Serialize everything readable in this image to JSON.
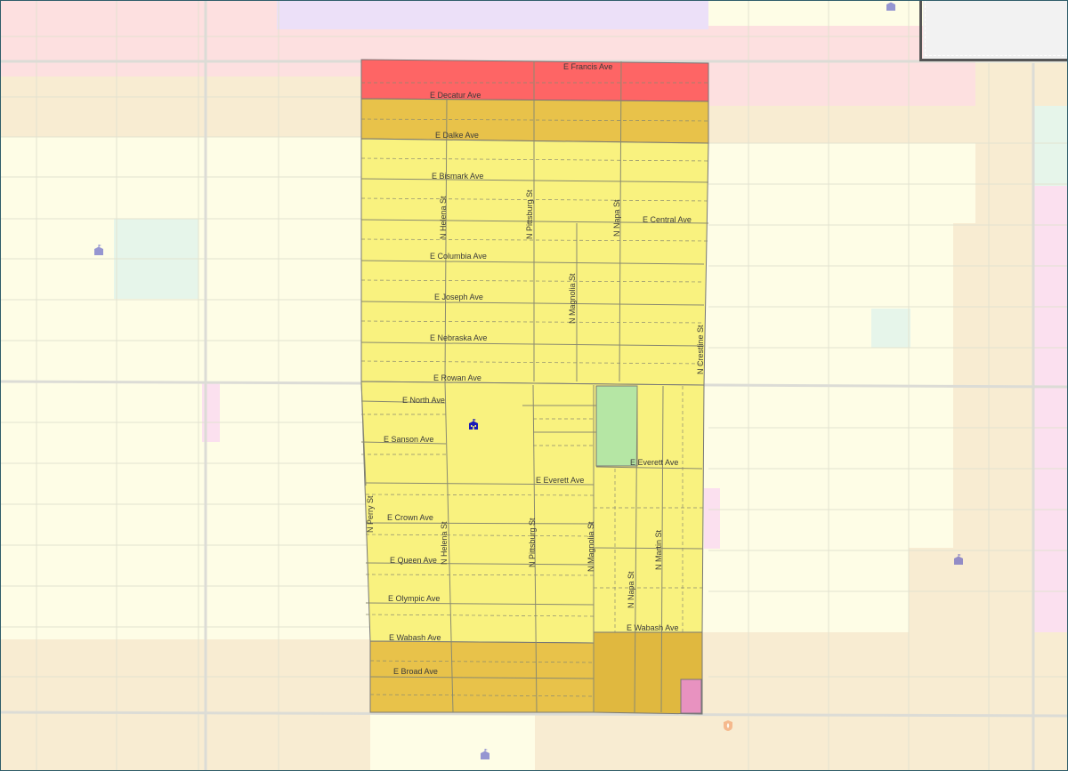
{
  "streets": {
    "e_francis_ave": "E Francis Ave",
    "e_decatur_ave": "E Decatur Ave",
    "e_dalke_ave": "E Dalke Ave",
    "e_bismark_ave": "E Bismark Ave",
    "n_helena_st_north": "N Helena St",
    "n_pittsburg_st_north": "N Pittsburg St",
    "n_napa_st_north": "N Napa St",
    "e_central_ave": "E Central Ave",
    "e_columbia_ave": "E Columbia Ave",
    "e_joseph_ave": "E Joseph Ave",
    "n_magnolia_st_north": "N Magnolia St",
    "e_nebraska_ave": "E Nebraska Ave",
    "n_crestline_st": "N Crestline St",
    "e_rowan_ave": "E Rowan Ave",
    "e_north_ave": "E North Ave",
    "e_sanson_ave": "E Sanson Ave",
    "e_everett_ave_east": "E Everett Ave",
    "e_everett_ave_west": "E Everett Ave",
    "n_perry_st": "N Perry St",
    "e_crown_ave": "E Crown Ave",
    "n_helena_st_south": "N Helena St",
    "n_pittsburg_st_south": "N Pittsburg St",
    "n_magnolia_st_south": "N Magnolia St",
    "n_martin_st": "N Martin St",
    "e_queen_ave": "E Queen Ave",
    "n_napa_st_south": "N Napa St",
    "e_olympic_ave": "E Olympic Ave",
    "e_wabash_ave_west": "E Wabash Ave",
    "e_wabash_ave_east": "E Wabash Ave",
    "e_broad_ave": "E Broad Ave"
  },
  "icons": {
    "school_center": "school-icon",
    "school_west": "school-icon",
    "school_east": "school-icon",
    "school_south": "school-icon",
    "school_top": "school-icon",
    "fire_station": "fire-station-icon"
  },
  "colors": {
    "red_zone": "#fe6565",
    "gold_zone": "#e8c24a",
    "yellow_zone": "#f9f27f",
    "green_zone": "#b5e6a4",
    "pink_zone": "#e892c0",
    "pale_yellow": "#fefde6",
    "pale_pink": "#fde0e0",
    "pale_tan": "#f8ecd2",
    "icon_blue": "#1a1ab8"
  }
}
